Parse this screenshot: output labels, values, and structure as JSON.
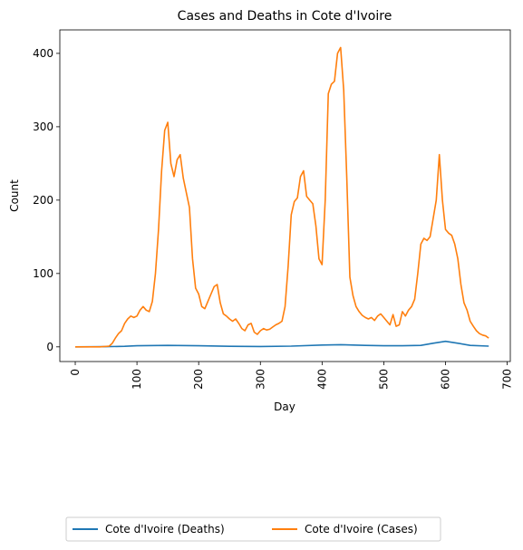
{
  "chart_data": {
    "type": "line",
    "title": "Cases and Deaths in Cote d'Ivoire",
    "xlabel": "Day",
    "ylabel": "Count",
    "xlim": [
      -25,
      705
    ],
    "ylim": [
      -20,
      432
    ],
    "xticks": [
      0,
      100,
      200,
      300,
      400,
      500,
      600,
      700
    ],
    "yticks": [
      0,
      100,
      200,
      300,
      400
    ],
    "grid": false,
    "legend_position": "bottom",
    "series": [
      {
        "name": "Cote d'Ivoire (Deaths)",
        "color": "#1f77b4",
        "x": [
          0,
          50,
          80,
          100,
          150,
          200,
          250,
          300,
          350,
          400,
          430,
          470,
          500,
          530,
          560,
          580,
          600,
          620,
          640,
          670
        ],
        "y": [
          0,
          0.2,
          0.8,
          1.5,
          2,
          1.5,
          0.8,
          0.5,
          1,
          2.5,
          3,
          2,
          1.5,
          1.5,
          2,
          5,
          7.5,
          5,
          2,
          1
        ]
      },
      {
        "name": "Cote d'Ivoire (Cases)",
        "color": "#ff7f0e",
        "x": [
          0,
          40,
          55,
          60,
          65,
          70,
          75,
          80,
          85,
          90,
          95,
          100,
          105,
          110,
          115,
          120,
          125,
          130,
          135,
          140,
          145,
          150,
          155,
          160,
          165,
          170,
          175,
          180,
          185,
          190,
          195,
          200,
          205,
          210,
          215,
          220,
          225,
          230,
          235,
          240,
          245,
          250,
          255,
          260,
          265,
          270,
          275,
          280,
          285,
          290,
          295,
          300,
          305,
          310,
          315,
          320,
          325,
          330,
          335,
          340,
          345,
          350,
          355,
          360,
          365,
          370,
          375,
          380,
          385,
          390,
          395,
          400,
          405,
          410,
          415,
          420,
          425,
          430,
          435,
          440,
          445,
          450,
          455,
          460,
          465,
          470,
          475,
          480,
          485,
          490,
          495,
          500,
          505,
          510,
          515,
          520,
          525,
          530,
          535,
          540,
          545,
          550,
          555,
          560,
          565,
          570,
          575,
          580,
          585,
          590,
          595,
          600,
          605,
          610,
          615,
          620,
          625,
          630,
          635,
          640,
          645,
          650,
          655,
          660,
          665,
          670
        ],
        "y": [
          0,
          0,
          1,
          5,
          12,
          18,
          22,
          32,
          38,
          42,
          40,
          42,
          50,
          55,
          50,
          48,
          62,
          100,
          160,
          240,
          295,
          306,
          250,
          232,
          255,
          262,
          230,
          210,
          190,
          120,
          80,
          72,
          55,
          52,
          62,
          72,
          82,
          85,
          60,
          45,
          42,
          38,
          35,
          38,
          32,
          25,
          22,
          30,
          32,
          20,
          17,
          22,
          25,
          23,
          24,
          27,
          30,
          32,
          35,
          55,
          110,
          180,
          198,
          203,
          232,
          240,
          205,
          200,
          195,
          165,
          120,
          112,
          200,
          345,
          358,
          362,
          400,
          408,
          350,
          230,
          95,
          70,
          55,
          48,
          43,
          40,
          38,
          40,
          36,
          42,
          45,
          40,
          35,
          30,
          44,
          28,
          30,
          48,
          42,
          50,
          55,
          65,
          100,
          140,
          148,
          145,
          150,
          175,
          200,
          262,
          200,
          160,
          155,
          152,
          140,
          120,
          85,
          60,
          50,
          35,
          28,
          22,
          18,
          16,
          15,
          12
        ]
      }
    ]
  }
}
